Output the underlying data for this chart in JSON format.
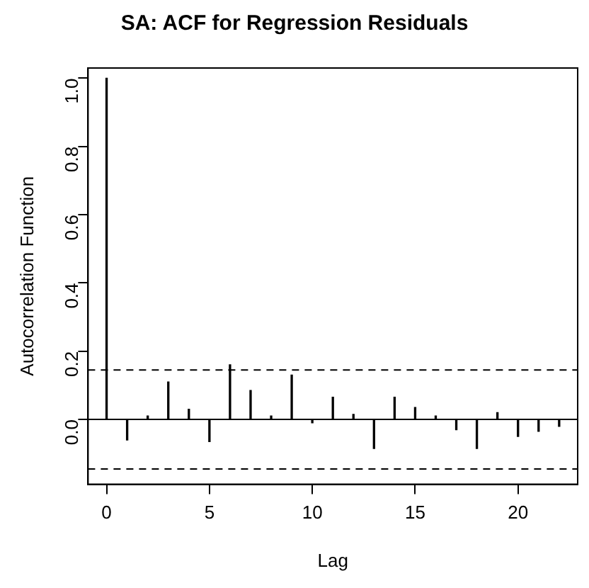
{
  "chart_data": {
    "type": "bar",
    "title": "SA: ACF for Regression Residuals",
    "xlabel": "Lag",
    "ylabel": "Autocorrelation Function",
    "x": [
      0,
      1,
      2,
      3,
      4,
      5,
      6,
      7,
      8,
      9,
      10,
      11,
      12,
      13,
      14,
      15,
      16,
      17,
      18,
      19,
      20,
      21,
      22
    ],
    "values": [
      1.0,
      -0.06,
      0.01,
      0.11,
      0.03,
      -0.065,
      0.16,
      0.085,
      0.01,
      0.13,
      -0.01,
      0.065,
      0.015,
      -0.085,
      0.065,
      0.035,
      0.01,
      -0.03,
      -0.085,
      0.02,
      -0.05,
      -0.035,
      -0.02
    ],
    "color": "#000000",
    "xlim": [
      -0.9,
      22.9
    ],
    "ylim": [
      -0.19,
      1.03
    ],
    "xticks": [
      0,
      5,
      10,
      15,
      20
    ],
    "yticks": [
      {
        "value": 0,
        "label": "0.0"
      },
      0.2,
      0.4,
      0.6,
      0.8,
      {
        "value": 1,
        "label": "1.0"
      }
    ],
    "grid": false,
    "legend": false,
    "ref_lines": [
      {
        "axis": "y",
        "value": 0,
        "line_style": "solid",
        "color": "#000000"
      },
      {
        "axis": "y",
        "value": 0.145,
        "line_style": "dashed",
        "color": "#000000"
      },
      {
        "axis": "y",
        "value": -0.145,
        "line_style": "dashed",
        "color": "#000000"
      }
    ]
  }
}
